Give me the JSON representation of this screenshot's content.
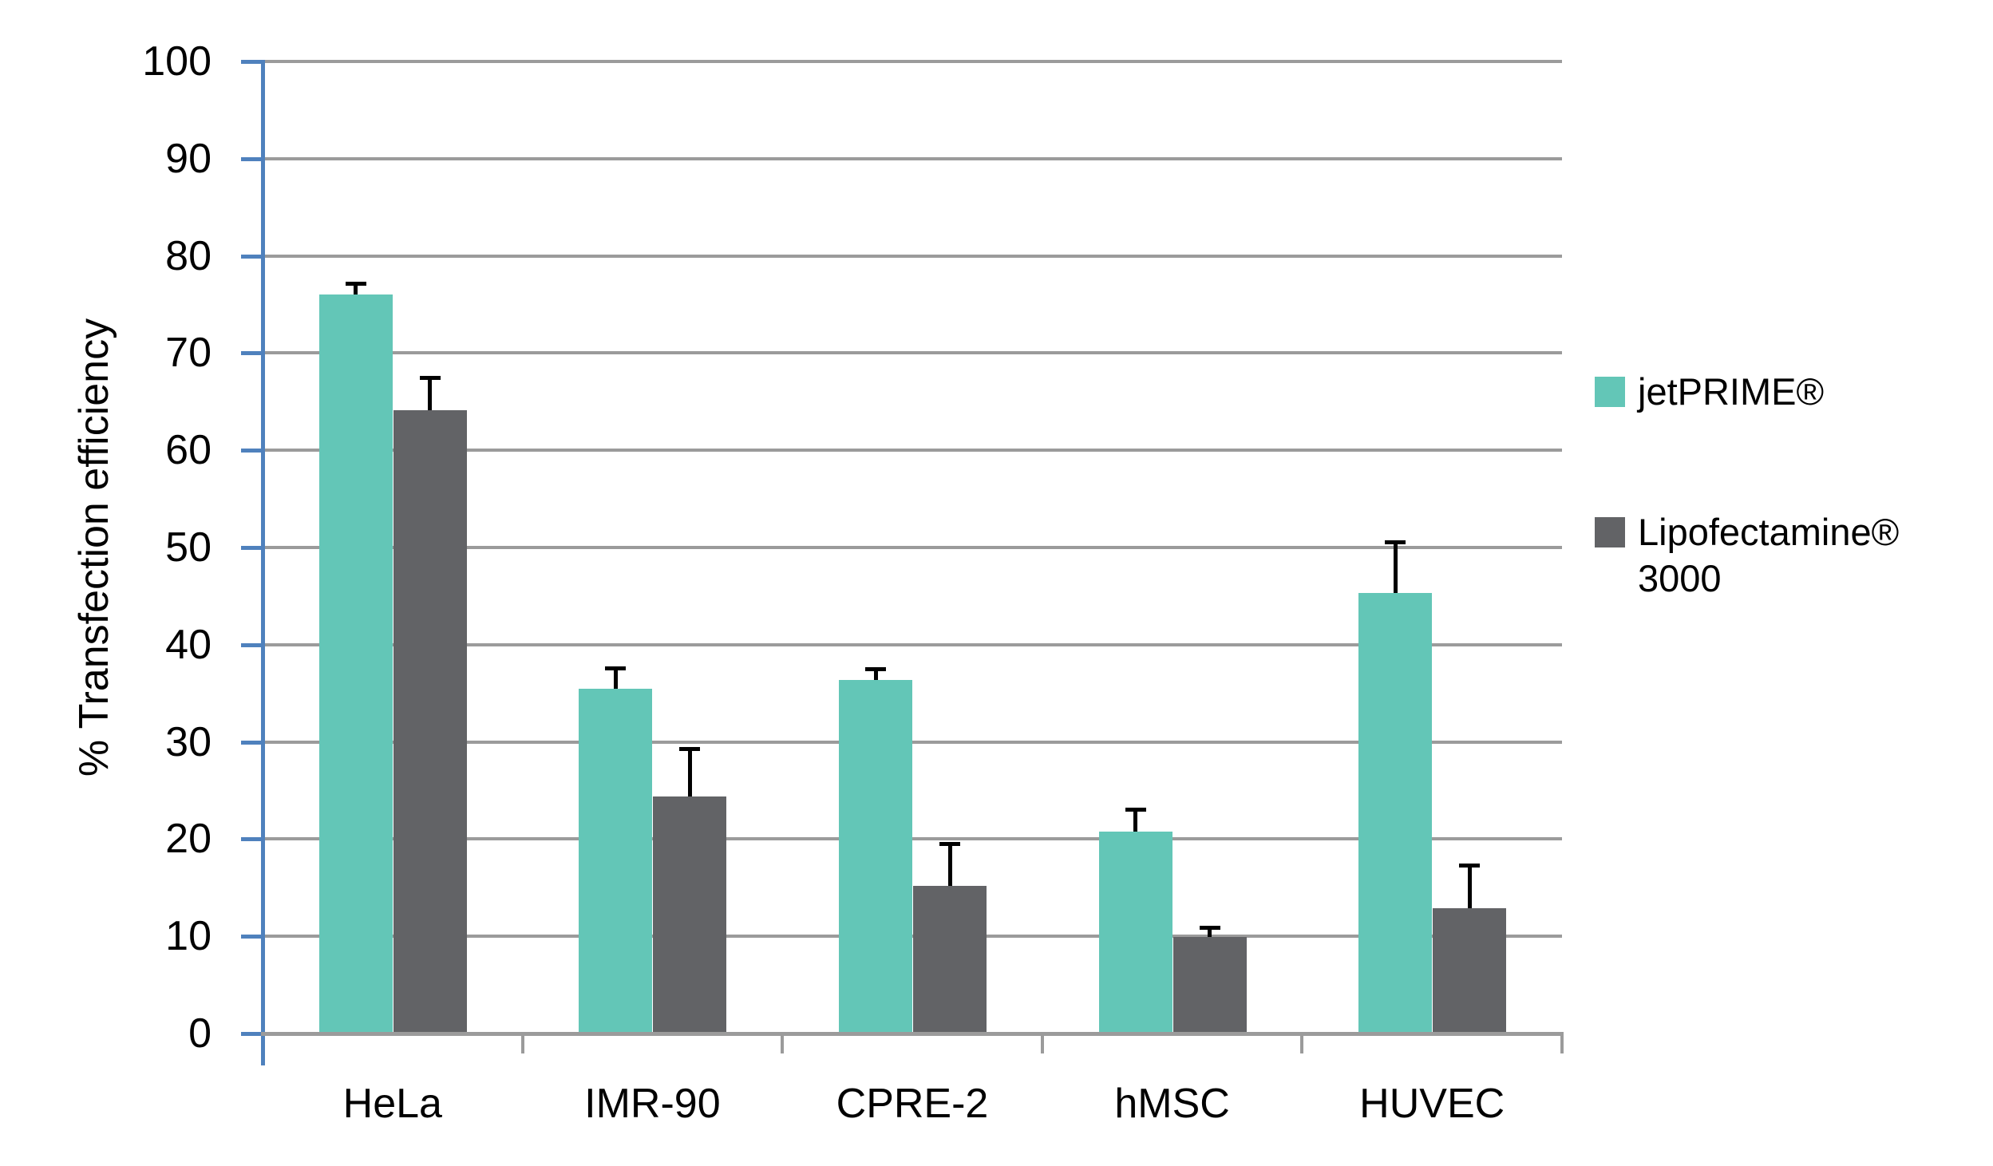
{
  "chart_data": {
    "type": "bar",
    "title": "",
    "categories": [
      "HeLa",
      "IMR-90",
      "CPRE-2",
      "hMSC",
      "HUVEC"
    ],
    "series": [
      {
        "name": "jetPRIME®",
        "color": "#63C6B7",
        "values": [
          76.0,
          35.5,
          36.4,
          20.8,
          45.3
        ],
        "errors_plus": [
          1.2,
          2.1,
          1.1,
          2.3,
          5.3
        ]
      },
      {
        "name": "Lipofectamine® 3000",
        "color": "#626366",
        "values": [
          64.1,
          24.4,
          15.2,
          9.9,
          12.9
        ],
        "errors_plus": [
          3.4,
          4.9,
          4.3,
          1.0,
          4.4
        ]
      }
    ],
    "xlabel": "",
    "ylabel": "% Transfection efficiency",
    "ylim": [
      0,
      100
    ],
    "yticks": [
      0,
      10,
      20,
      30,
      40,
      50,
      60,
      70,
      80,
      90,
      100
    ],
    "grid": true,
    "legend_position": "right"
  },
  "colors": {
    "axis_blue": "#4F81BD",
    "grid_gray": "#9B9B9B",
    "error_bar": "#000000",
    "text": "#000000",
    "background": "#FFFFFF"
  }
}
